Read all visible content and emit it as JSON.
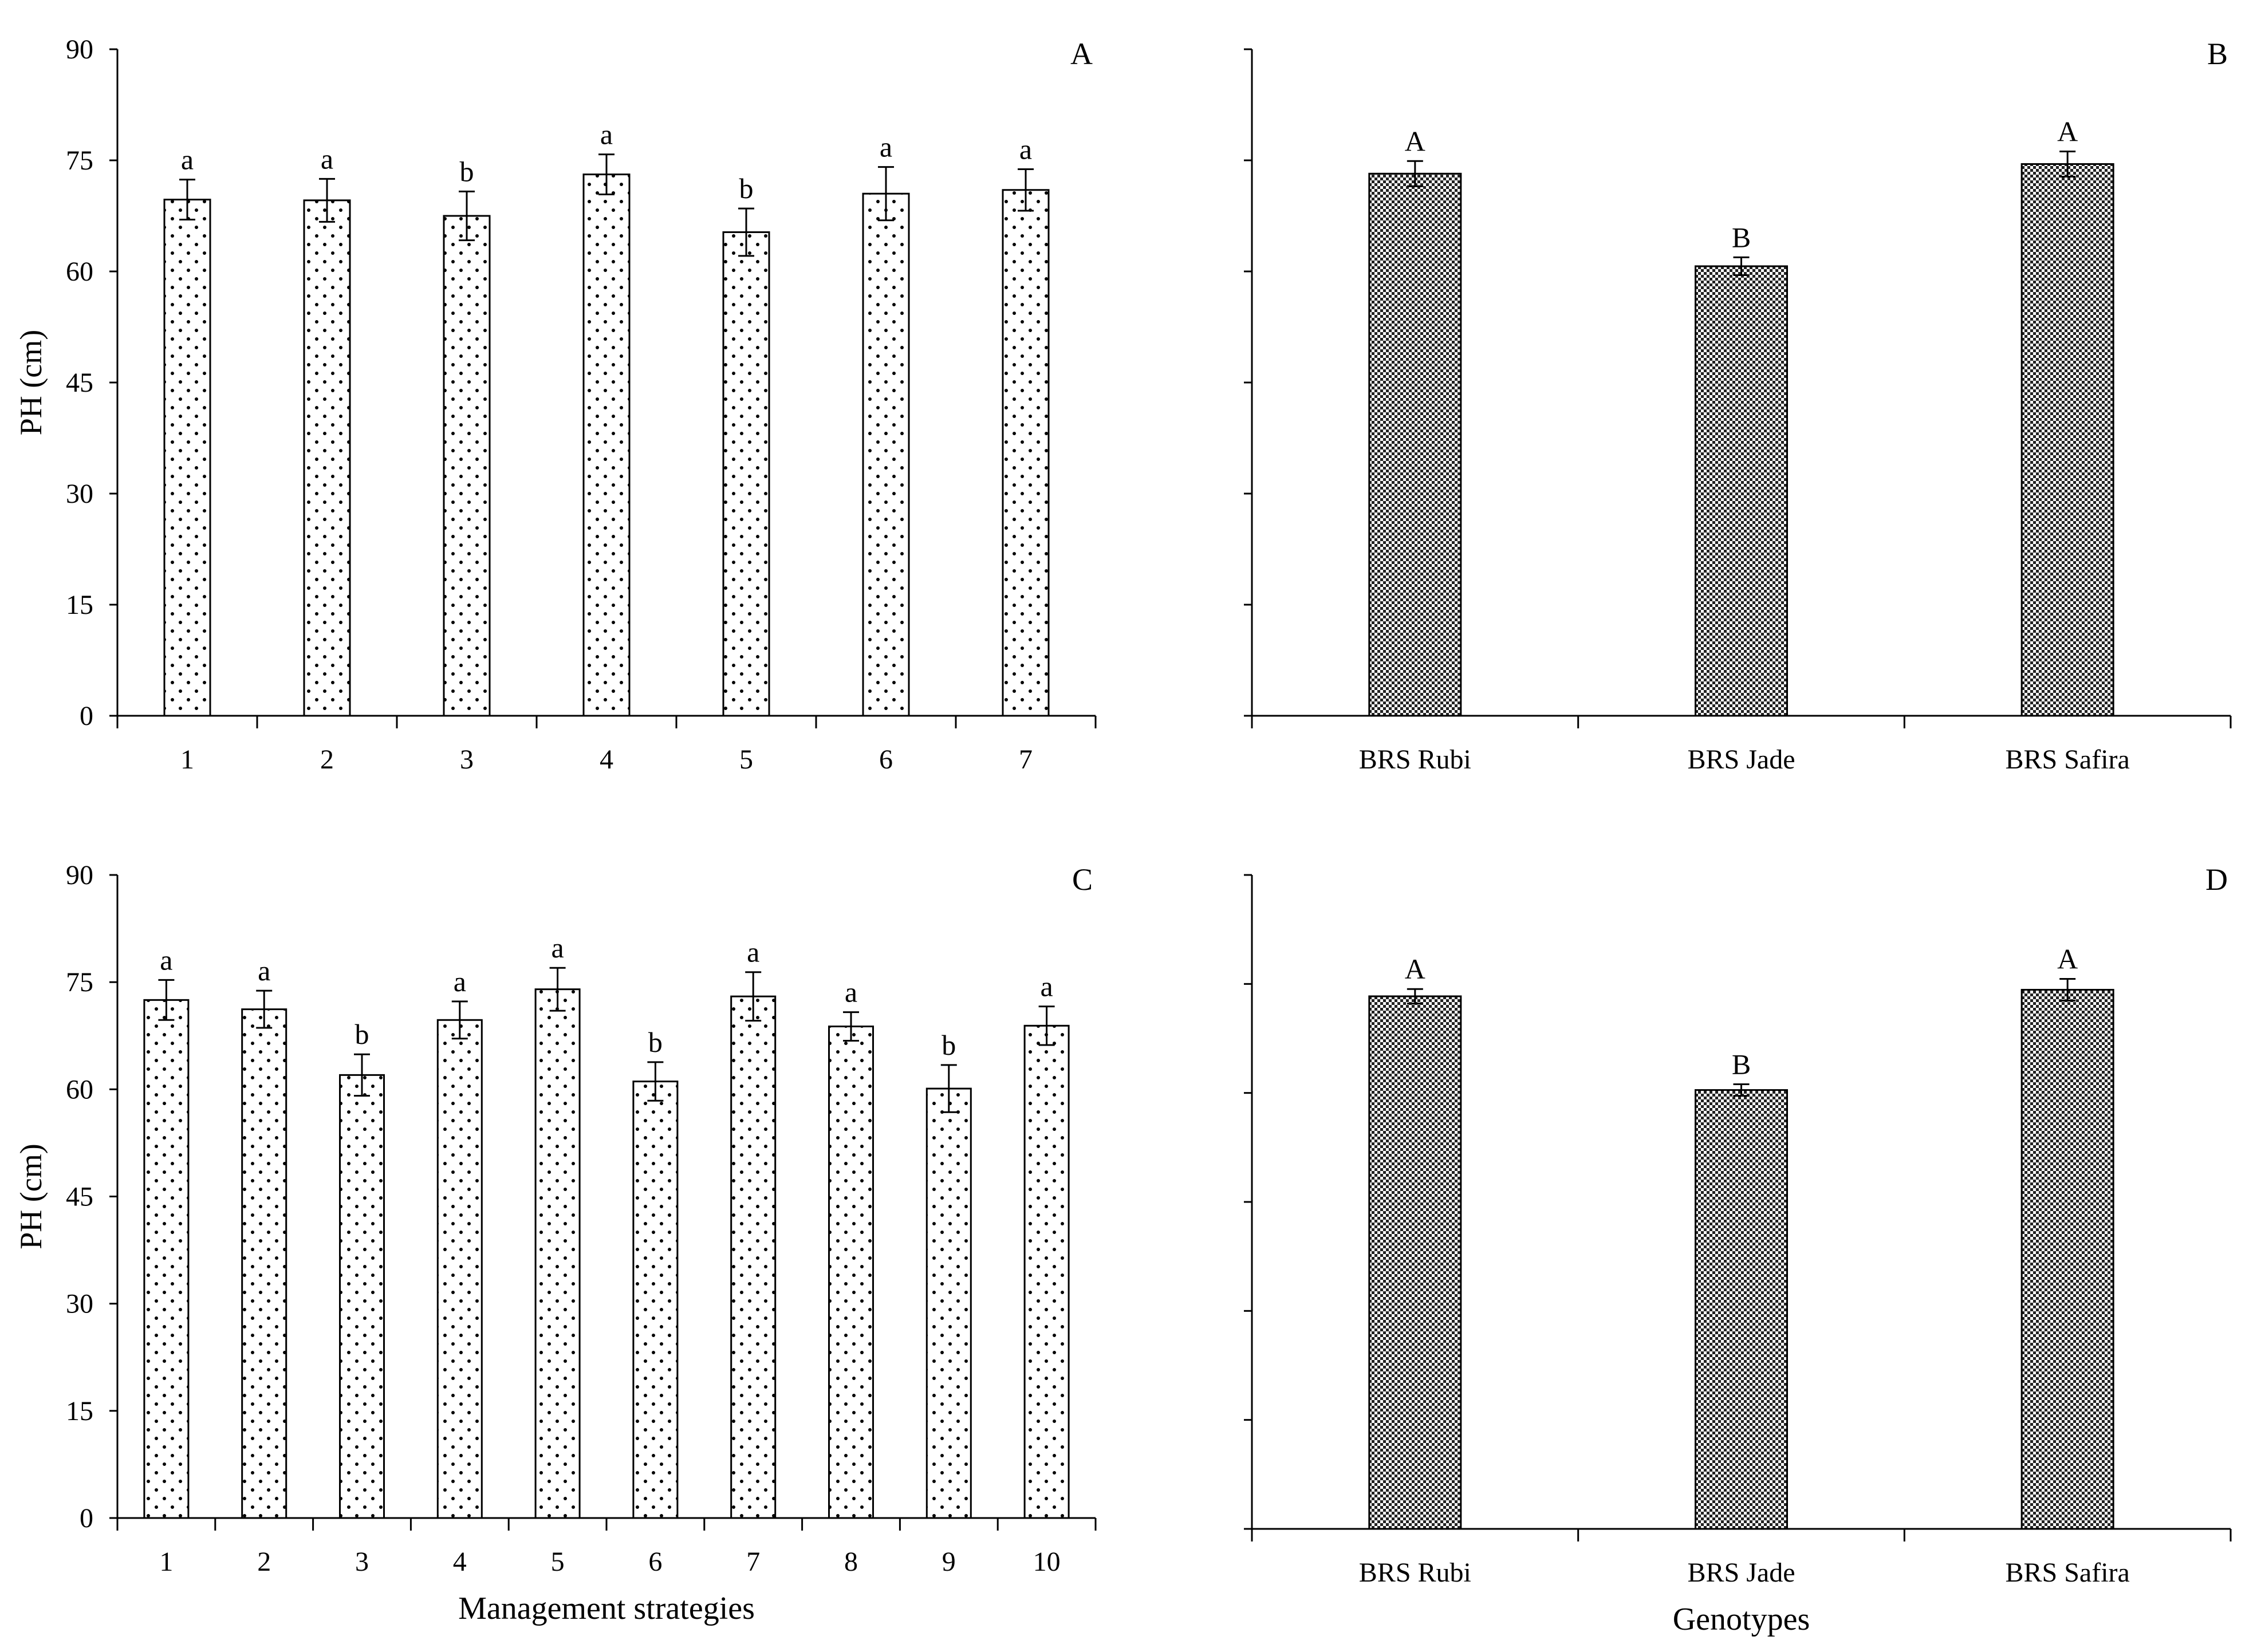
{
  "chart_data": [
    {
      "panel": "A",
      "type": "bar",
      "ylabel": "PH (cm)",
      "xlabel": "",
      "ylim": [
        0,
        90
      ],
      "yticks": [
        "0",
        "15",
        "30",
        "45",
        "60",
        "75",
        "90"
      ],
      "categories": [
        "1",
        "2",
        "3",
        "4",
        "5",
        "6",
        "7"
      ],
      "values": [
        69.7,
        69.6,
        67.5,
        73.1,
        65.3,
        70.5,
        71.0
      ],
      "errors": [
        2.7,
        2.9,
        3.3,
        2.7,
        3.2,
        3.6,
        2.8
      ],
      "letters": [
        "a",
        "a",
        "b",
        "a",
        "b",
        "a",
        "a"
      ],
      "pattern": "dots"
    },
    {
      "panel": "B",
      "type": "bar",
      "ylabel": "",
      "xlabel": "",
      "ylim": [
        0,
        90
      ],
      "yticks": [],
      "categories": [
        "BRS Rubi",
        "BRS Jade",
        "BRS Safira"
      ],
      "values": [
        73.2,
        60.7,
        74.5
      ],
      "errors": [
        1.7,
        1.2,
        1.7
      ],
      "letters": [
        "A",
        "B",
        "A"
      ],
      "pattern": "checker"
    },
    {
      "panel": "C",
      "type": "bar",
      "ylabel": "PH (cm)",
      "xlabel": "Management strategies",
      "ylim": [
        0,
        90
      ],
      "yticks": [
        "0",
        "15",
        "30",
        "45",
        "60",
        "75",
        "90"
      ],
      "categories": [
        "1",
        "2",
        "3",
        "4",
        "5",
        "6",
        "7",
        "8",
        "9",
        "10"
      ],
      "values": [
        72.5,
        71.2,
        62.0,
        69.7,
        74.0,
        61.1,
        73.0,
        68.8,
        60.1,
        68.9
      ],
      "errors": [
        2.8,
        2.6,
        2.9,
        2.6,
        3.0,
        2.7,
        3.4,
        2.0,
        3.3,
        2.7
      ],
      "letters": [
        "a",
        "a",
        "b",
        "a",
        "a",
        "b",
        "a",
        "a",
        "b",
        "a"
      ],
      "pattern": "dots"
    },
    {
      "panel": "D",
      "type": "bar",
      "ylabel": "",
      "xlabel": "Genotypes",
      "ylim": [
        0,
        90
      ],
      "yticks": [],
      "categories": [
        "BRS Rubi",
        "BRS Jade",
        "BRS Safira"
      ],
      "values": [
        73.3,
        60.4,
        74.2
      ],
      "errors": [
        1.0,
        0.8,
        1.5
      ],
      "letters": [
        "A",
        "B",
        "A"
      ],
      "pattern": "checker"
    }
  ]
}
